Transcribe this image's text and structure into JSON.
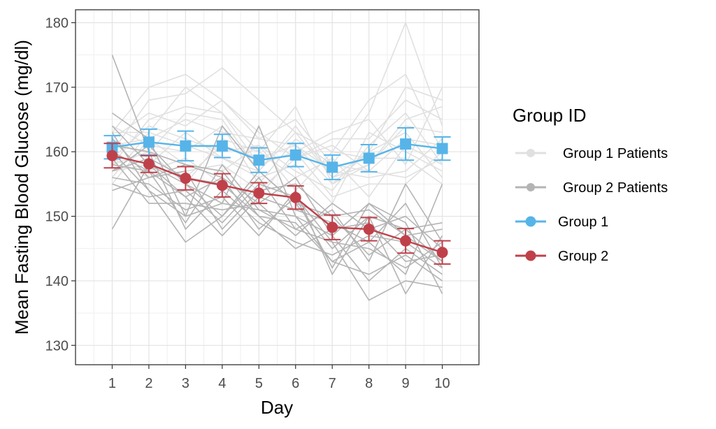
{
  "chart_data": {
    "type": "line",
    "xlabel": "Day",
    "ylabel": "Mean Fasting Blood Glucose (mg/dl)",
    "x": [
      1,
      2,
      3,
      4,
      5,
      6,
      7,
      8,
      9,
      10
    ],
    "xlim": [
      0,
      11
    ],
    "ylim": [
      127,
      182
    ],
    "yticks": [
      130,
      140,
      150,
      160,
      170,
      180
    ],
    "grid": true,
    "legend": {
      "title": "Group ID",
      "placement": "right",
      "entries": [
        "Group 1 Patients",
        "Group 2 Patients",
        "Group 1",
        "Group 2"
      ]
    },
    "colors": {
      "group1_patients": "#e0e0e0",
      "group2_patients": "#b4b4b4",
      "group1": "#56b4e9",
      "group2": "#c0404a"
    },
    "series": [
      {
        "name": "Group 1",
        "marker": "square",
        "values": [
          160.7,
          161.5,
          160.9,
          160.9,
          158.7,
          159.5,
          157.6,
          159.0,
          161.2,
          160.5
        ],
        "error": [
          1.8,
          2.0,
          2.3,
          1.8,
          1.9,
          1.8,
          1.9,
          2.1,
          2.5,
          1.8
        ]
      },
      {
        "name": "Group 2",
        "marker": "circle",
        "values": [
          159.4,
          158.1,
          155.9,
          154.8,
          153.6,
          152.9,
          148.3,
          148.0,
          146.2,
          144.4
        ],
        "error": [
          1.9,
          1.3,
          1.8,
          1.8,
          1.6,
          1.8,
          1.9,
          1.8,
          1.9,
          1.8
        ]
      }
    ],
    "group1_patients": [
      [
        163,
        170,
        172,
        168,
        162,
        165,
        158,
        166,
        180,
        164
      ],
      [
        160,
        168,
        169,
        173,
        168,
        163,
        160,
        168,
        172,
        160
      ],
      [
        158,
        165,
        167,
        166,
        160,
        167,
        155,
        160,
        170,
        168
      ],
      [
        162,
        166,
        164,
        168,
        163,
        159,
        162,
        162,
        168,
        165
      ],
      [
        156,
        163,
        170,
        166,
        158,
        160,
        163,
        165,
        158,
        170
      ],
      [
        161,
        160,
        166,
        165,
        157,
        164,
        156,
        158,
        164,
        163
      ],
      [
        159,
        164,
        162,
        160,
        161,
        157,
        154,
        161,
        166,
        158
      ],
      [
        164,
        161,
        160,
        164,
        155,
        162,
        158,
        157,
        162,
        161
      ],
      [
        157,
        158,
        163,
        159,
        156,
        158,
        152,
        163,
        160,
        157
      ],
      [
        162,
        159,
        156,
        161,
        159,
        161,
        157,
        156,
        157,
        162
      ],
      [
        155,
        162,
        158,
        157,
        161,
        154,
        160,
        159,
        159,
        155
      ],
      [
        160,
        157,
        159,
        155,
        153,
        160,
        153,
        155,
        155,
        160
      ],
      [
        158,
        160,
        155,
        162,
        160,
        156,
        159,
        153,
        161,
        158
      ],
      [
        163,
        163,
        161,
        159,
        157,
        163,
        156,
        160,
        163,
        156
      ],
      [
        159,
        156,
        157,
        158,
        154,
        159,
        161,
        157,
        156,
        159
      ],
      [
        161,
        162,
        165,
        163,
        162,
        161,
        155,
        158,
        165,
        167
      ]
    ],
    "group2_patients": [
      [
        175,
        160,
        158,
        157,
        150,
        149,
        143,
        141,
        144,
        140
      ],
      [
        166,
        162,
        150,
        164,
        157,
        152,
        145,
        150,
        148,
        143
      ],
      [
        164,
        158,
        155,
        152,
        164,
        150,
        143,
        146,
        152,
        142
      ],
      [
        162,
        156,
        158,
        156,
        152,
        156,
        147,
        152,
        147,
        148
      ],
      [
        160,
        154,
        146,
        150,
        156,
        148,
        151,
        143,
        155,
        146
      ],
      [
        158,
        157,
        153,
        147,
        153,
        151,
        149,
        146,
        141,
        155
      ],
      [
        157,
        159,
        156,
        155,
        150,
        145,
        148,
        149,
        143,
        144
      ],
      [
        156,
        155,
        151,
        153,
        147,
        154,
        141,
        150,
        138,
        147
      ],
      [
        155,
        153,
        154,
        149,
        155,
        153,
        146,
        137,
        140,
        139
      ],
      [
        159,
        152,
        152,
        151,
        152,
        147,
        152,
        148,
        150,
        145
      ],
      [
        161,
        160,
        148,
        154,
        149,
        146,
        144,
        147,
        146,
        142
      ],
      [
        154,
        156,
        157,
        148,
        154,
        155,
        150,
        144,
        148,
        149
      ],
      [
        163,
        154,
        150,
        152,
        151,
        150,
        147,
        140,
        145,
        141
      ],
      [
        148,
        158,
        153,
        156,
        148,
        153,
        142,
        152,
        149,
        138
      ],
      [
        160,
        157,
        149,
        158,
        151,
        148,
        146,
        145,
        142,
        146
      ],
      [
        157,
        161,
        155,
        150,
        157,
        152,
        150,
        151,
        147,
        143
      ]
    ]
  }
}
